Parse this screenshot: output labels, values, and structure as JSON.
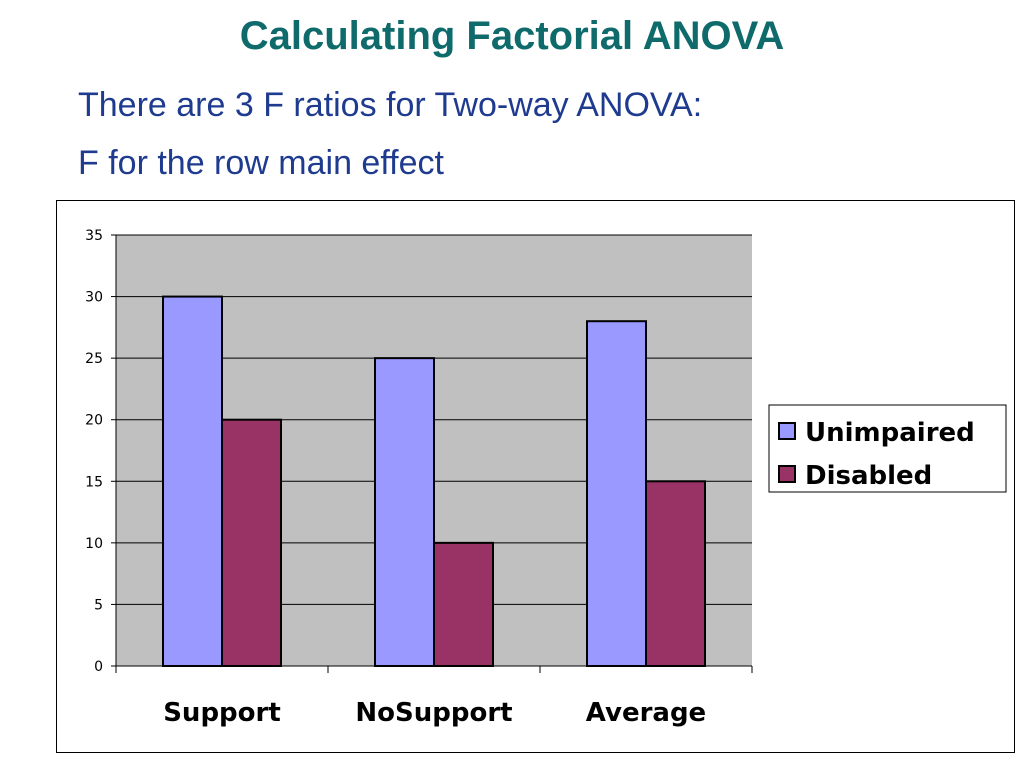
{
  "slide": {
    "title": "Calculating Factorial ANOVA",
    "bullets": [
      "There are 3 F ratios for Two-way ANOVA:",
      "F for the row main effect"
    ]
  },
  "colors": {
    "title": "#0f6b6b",
    "bullet_text": "#1f3b8f",
    "plot_background": "#c0c0c0",
    "gridline": "#000000"
  },
  "chart_data": {
    "type": "bar",
    "title": "",
    "xlabel": "",
    "ylabel": "",
    "categories": [
      "Support",
      "NoSupport",
      "Average"
    ],
    "series": [
      {
        "name": "Unimpaired",
        "values": [
          30,
          25,
          28
        ],
        "color": "#9999ff"
      },
      {
        "name": "Disabled",
        "values": [
          20,
          10,
          15
        ],
        "color": "#993366"
      }
    ],
    "ylim": [
      0,
      35
    ],
    "yticks": [
      0,
      5,
      10,
      15,
      20,
      25,
      30,
      35
    ],
    "grid": true,
    "legend": "right"
  }
}
